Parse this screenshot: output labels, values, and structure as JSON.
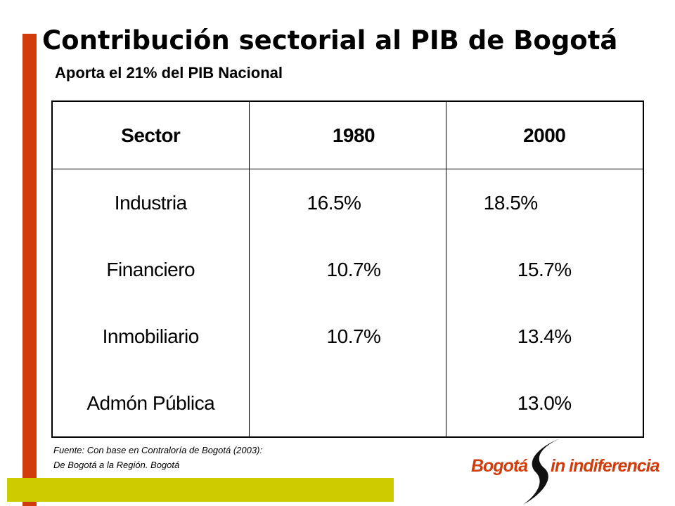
{
  "slide": {
    "title": "Contribución sectorial al PIB de Bogotá",
    "subtitle": "Aporta el 21% del PIB Nacional",
    "source_lines": [
      "Fuente: Con base en Contraloría de Bogotá (2003):",
      "De Bogotá a la Región. Bogotá"
    ],
    "logo": {
      "text_left": "Bogotá",
      "text_right": "in indiferencia",
      "mark_icon": "s-swoosh-icon"
    },
    "colors": {
      "accent_red": "#d03c0c",
      "accent_olive": "#cccc00"
    }
  },
  "chart_data": {
    "type": "table",
    "columns": [
      "Sector",
      "1980",
      "2000"
    ],
    "rows": [
      [
        "Industria",
        "16.5%",
        "18.5%"
      ],
      [
        "Financiero",
        "10.7%",
        "15.7%"
      ],
      [
        "Inmobiliario",
        "10.7%",
        "13.4%"
      ],
      [
        "Admón Pública",
        "",
        "13.0%"
      ]
    ]
  }
}
